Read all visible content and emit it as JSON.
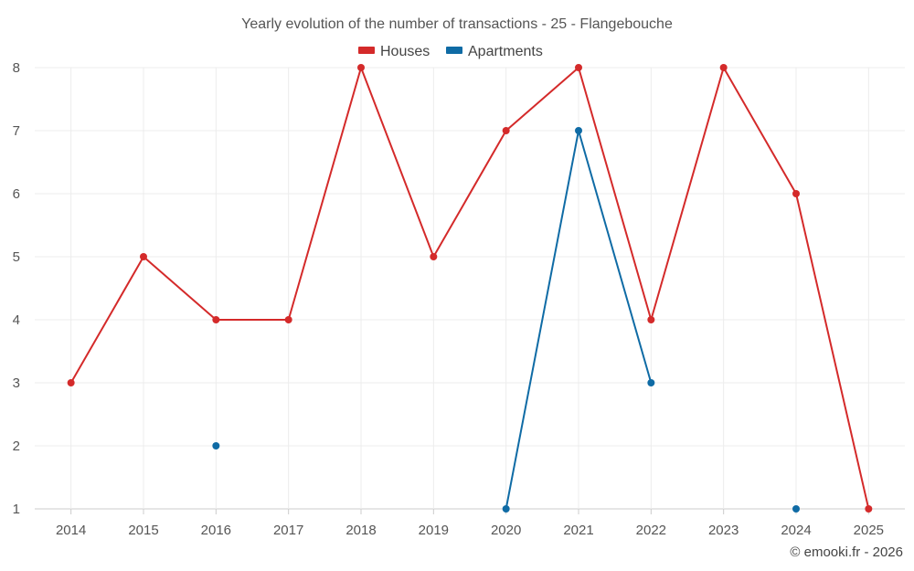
{
  "chart_data": {
    "type": "line",
    "title": "Yearly evolution of the number of transactions - 25 - Flangebouche",
    "categories": [
      "2014",
      "2015",
      "2016",
      "2017",
      "2018",
      "2019",
      "2020",
      "2021",
      "2022",
      "2023",
      "2024",
      "2025"
    ],
    "series": [
      {
        "name": "Houses",
        "color": "#d42a2a",
        "values": [
          3,
          5,
          4,
          4,
          8,
          5,
          7,
          8,
          4,
          8,
          6,
          1
        ]
      },
      {
        "name": "Apartments",
        "color": "#0f6ba5",
        "values": [
          null,
          null,
          2,
          null,
          null,
          null,
          1,
          7,
          3,
          null,
          1,
          null
        ]
      }
    ],
    "yticks": [
      1,
      2,
      3,
      4,
      5,
      6,
      7,
      8
    ],
    "ylim": [
      1,
      8
    ],
    "grid": true,
    "legend_position": "top-center",
    "xlabel": "",
    "ylabel": ""
  },
  "credit": "© emooki.fr - 2026"
}
